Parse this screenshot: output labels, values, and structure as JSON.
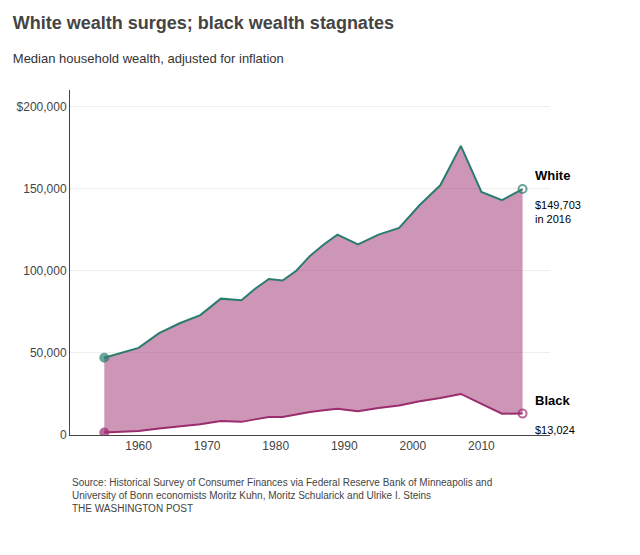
{
  "chart_data": {
    "type": "line",
    "title": "White wealth surges; black wealth stagnates",
    "subtitle": "Median household wealth, adjusted for inflation",
    "source": "Source: Historical Survey of Consumer Finances via Federal Reserve Bank of Minneapolis and\nUniversity of Bonn economists Moritz Kuhn, Moritz Schularick and Ulrike I. Steins\nTHE WASHINGTON POST",
    "x": [
      1955,
      1960,
      1963,
      1966,
      1969,
      1972,
      1975,
      1977,
      1979,
      1981,
      1983,
      1985,
      1987,
      1989,
      1992,
      1995,
      1998,
      2001,
      2004,
      2007,
      2010,
      2013,
      2016
    ],
    "series": [
      {
        "name": "White",
        "color": "#2a7d6e",
        "values": [
          47000,
          53000,
          62000,
          68000,
          73000,
          83000,
          82000,
          89000,
          95000,
          94000,
          100000,
          109000,
          116000,
          122000,
          116000,
          122000,
          126000,
          140000,
          152000,
          176000,
          148000,
          143000,
          149703
        ]
      },
      {
        "name": "Black",
        "color": "#9b2c6e",
        "values": [
          1500,
          2500,
          4000,
          5200,
          6500,
          8500,
          8000,
          9500,
          11000,
          11000,
          12500,
          14000,
          15000,
          16000,
          14500,
          16500,
          18000,
          20500,
          22500,
          25000,
          19000,
          13000,
          13024
        ]
      }
    ],
    "annotations": [
      {
        "text": "$149,703\nin 2016",
        "series": "White"
      },
      {
        "text": "$13,024",
        "series": "Black"
      }
    ],
    "marker": "circle",
    "xlim": [
      1950,
      2020
    ],
    "xticks": [
      1960,
      1970,
      1980,
      1990,
      2000,
      2010
    ],
    "ylim": [
      0,
      210000
    ],
    "yticks": [
      0,
      {
        "value": 50000,
        "label": "50,000"
      },
      {
        "value": 100000,
        "label": "100,000"
      },
      {
        "value": 150000,
        "label": "150,000"
      },
      {
        "value": 200000,
        "label": "$200,000"
      }
    ],
    "grid": "y"
  }
}
